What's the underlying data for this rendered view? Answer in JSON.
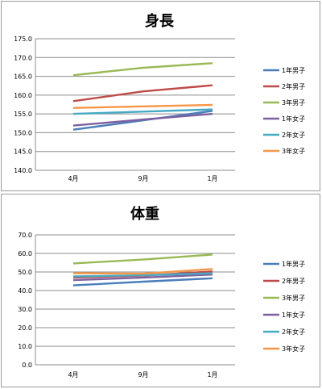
{
  "chart_data": [
    {
      "type": "line",
      "title": "身長",
      "categories": [
        "4月",
        "9月",
        "1月"
      ],
      "ylim": [
        140,
        175
      ],
      "yticks": [
        "140.0",
        "145.0",
        "150.0",
        "155.0",
        "160.0",
        "165.0",
        "170.0",
        "175.0"
      ],
      "grid": true,
      "legend": "right",
      "series": [
        {
          "name": "1年男子",
          "color": "#4a7ebb",
          "values": [
            150.8,
            153.3,
            155.8
          ]
        },
        {
          "name": "2年男子",
          "color": "#be4b48",
          "values": [
            158.4,
            161.0,
            162.6
          ]
        },
        {
          "name": "3年男子",
          "color": "#98b954",
          "values": [
            165.3,
            167.3,
            168.5
          ]
        },
        {
          "name": "1年女子",
          "color": "#7d60a0",
          "values": [
            151.9,
            153.5,
            155.0
          ]
        },
        {
          "name": "2年女子",
          "color": "#46aac5",
          "values": [
            155.0,
            155.6,
            156.2
          ]
        },
        {
          "name": "3年女子",
          "color": "#f79646",
          "values": [
            156.6,
            157.0,
            157.4
          ]
        }
      ]
    },
    {
      "type": "line",
      "title": "体重",
      "categories": [
        "4月",
        "9月",
        "1月"
      ],
      "ylim": [
        0,
        70
      ],
      "yticks": [
        "0.0",
        "10.0",
        "20.0",
        "30.0",
        "40.0",
        "50.0",
        "60.0",
        "70.0"
      ],
      "grid": true,
      "legend": "right",
      "series": [
        {
          "name": "1年男子",
          "color": "#4a7ebb",
          "values": [
            42.8,
            44.8,
            46.6
          ]
        },
        {
          "name": "2年男子",
          "color": "#be4b48",
          "values": [
            47.0,
            48.0,
            50.3
          ]
        },
        {
          "name": "3年男子",
          "color": "#98b954",
          "values": [
            54.6,
            56.7,
            59.4
          ]
        },
        {
          "name": "1年女子",
          "color": "#7d60a0",
          "values": [
            45.6,
            47.0,
            48.6
          ]
        },
        {
          "name": "2年女子",
          "color": "#46aac5",
          "values": [
            47.6,
            48.2,
            49.3
          ]
        },
        {
          "name": "3年女子",
          "color": "#f79646",
          "values": [
            49.3,
            49.1,
            51.6
          ]
        }
      ]
    }
  ]
}
